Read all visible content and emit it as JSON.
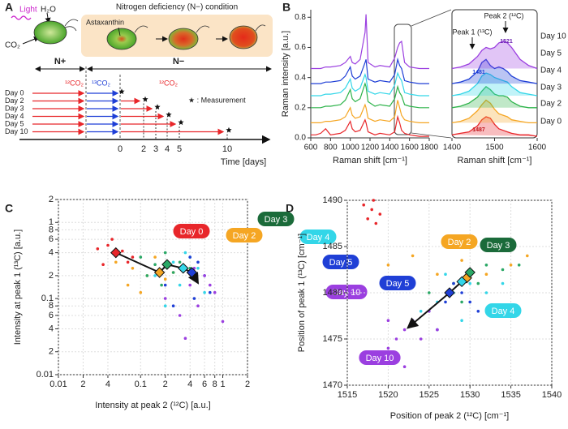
{
  "panels": [
    "A",
    "B",
    "C",
    "D"
  ],
  "diagram": {
    "light": "Light",
    "h2o": "H₂O",
    "co2": "CO₂",
    "condition": "Nitrogen deficiency (N−) condition",
    "astaxanthin": "Astaxanthin",
    "n_plus": "N+",
    "n_minus": "N−",
    "co2_12a": "¹²CO₂",
    "co2_13": "¹³CO₂",
    "co2_12b": "¹²CO₂",
    "measurement": "★ : Measurement",
    "rows": [
      "Day 0",
      "Day 2",
      "Day 3",
      "Day 4",
      "Day 5",
      "Day 10"
    ],
    "time_ticks": [
      0,
      2,
      3,
      4,
      5,
      10
    ],
    "time_label": "Time [days]"
  },
  "chart_data": [
    {
      "type": "line",
      "xlabel": "Raman shift [cm⁻¹]",
      "ylabel": "Raman intensity [a.u.]",
      "x": [
        600,
        650,
        700,
        750,
        800,
        900,
        950,
        1000,
        1020,
        1050,
        1100,
        1150,
        1160,
        1180,
        1250,
        1300,
        1400,
        1450,
        1480,
        1500,
        1520,
        1550,
        1600,
        1700,
        1800
      ],
      "series": [
        {
          "color": "#e8262a",
          "values": [
            0.02,
            0.02,
            0.03,
            0.06,
            0.02,
            0.03,
            0.05,
            0.11,
            0.06,
            0.04,
            0.05,
            0.12,
            0.1,
            0.04,
            0.02,
            0.03,
            0.02,
            0.04,
            0.14,
            0.1,
            0.05,
            0.03,
            0.02,
            0.01,
            0.01
          ]
        },
        {
          "color": "#f5a623",
          "values": [
            0.1,
            0.1,
            0.1,
            0.11,
            0.11,
            0.12,
            0.14,
            0.2,
            0.15,
            0.13,
            0.14,
            0.22,
            0.2,
            0.13,
            0.11,
            0.12,
            0.11,
            0.14,
            0.25,
            0.2,
            0.15,
            0.12,
            0.11,
            0.1,
            0.1
          ]
        },
        {
          "color": "#2db34a",
          "values": [
            0.2,
            0.2,
            0.2,
            0.21,
            0.21,
            0.22,
            0.25,
            0.32,
            0.26,
            0.24,
            0.26,
            0.36,
            0.34,
            0.24,
            0.21,
            0.22,
            0.21,
            0.26,
            0.34,
            0.3,
            0.28,
            0.22,
            0.21,
            0.2,
            0.2
          ]
        },
        {
          "color": "#33d6e8",
          "values": [
            0.28,
            0.28,
            0.28,
            0.29,
            0.29,
            0.3,
            0.33,
            0.39,
            0.33,
            0.31,
            0.33,
            0.42,
            0.4,
            0.31,
            0.29,
            0.3,
            0.29,
            0.35,
            0.43,
            0.4,
            0.38,
            0.3,
            0.29,
            0.28,
            0.28
          ]
        },
        {
          "color": "#1f3fd6",
          "values": [
            0.36,
            0.36,
            0.36,
            0.37,
            0.37,
            0.38,
            0.41,
            0.47,
            0.41,
            0.39,
            0.41,
            0.5,
            0.52,
            0.39,
            0.37,
            0.38,
            0.37,
            0.42,
            0.52,
            0.48,
            0.46,
            0.38,
            0.37,
            0.36,
            0.36
          ]
        },
        {
          "color": "#9b3fe0",
          "values": [
            0.46,
            0.46,
            0.46,
            0.47,
            0.47,
            0.48,
            0.5,
            0.54,
            0.5,
            0.49,
            0.52,
            0.7,
            0.82,
            0.5,
            0.47,
            0.48,
            0.47,
            0.53,
            0.6,
            0.63,
            0.64,
            0.5,
            0.47,
            0.46,
            0.46
          ]
        }
      ],
      "xlim": [
        600,
        1800
      ],
      "xticks": [
        600,
        800,
        1000,
        1200,
        1400,
        1600,
        1800
      ],
      "ylim": [
        0,
        0.85
      ],
      "yticks": [
        {
          "value": 0,
          "label": "0.0"
        },
        0.2,
        0.4,
        0.6,
        0.8
      ]
    },
    {
      "type": "area",
      "xlabel": "Raman shift [cm⁻¹]",
      "x": [
        1400,
        1420,
        1440,
        1460,
        1470,
        1480,
        1490,
        1500,
        1510,
        1520,
        1530,
        1540,
        1560,
        1580,
        1600
      ],
      "series": [
        {
          "name": "Day 10",
          "color": "#9b3fe0",
          "values": [
            0.46,
            0.47,
            0.49,
            0.54,
            0.58,
            0.6,
            0.59,
            0.6,
            0.63,
            0.64,
            0.63,
            0.6,
            0.52,
            0.48,
            0.46
          ]
        },
        {
          "name": "Day 5",
          "color": "#1f3fd6",
          "values": [
            0.36,
            0.37,
            0.39,
            0.44,
            0.5,
            0.52,
            0.48,
            0.46,
            0.47,
            0.46,
            0.44,
            0.41,
            0.38,
            0.37,
            0.36
          ]
        },
        {
          "name": "Day 4",
          "color": "#33d6e8",
          "values": [
            0.28,
            0.29,
            0.31,
            0.36,
            0.41,
            0.43,
            0.42,
            0.4,
            0.39,
            0.38,
            0.37,
            0.34,
            0.3,
            0.29,
            0.28
          ]
        },
        {
          "name": "Day 3",
          "color": "#2db34a",
          "values": [
            0.2,
            0.21,
            0.23,
            0.27,
            0.31,
            0.34,
            0.32,
            0.29,
            0.28,
            0.28,
            0.27,
            0.24,
            0.21,
            0.2,
            0.2
          ]
        },
        {
          "name": "Day 2",
          "color": "#f5a623",
          "values": [
            0.1,
            0.11,
            0.13,
            0.18,
            0.22,
            0.25,
            0.23,
            0.19,
            0.16,
            0.15,
            0.14,
            0.12,
            0.11,
            0.1,
            0.1
          ]
        },
        {
          "name": "Day 0",
          "color": "#e8262a",
          "values": [
            0.02,
            0.03,
            0.04,
            0.08,
            0.12,
            0.14,
            0.13,
            0.09,
            0.06,
            0.05,
            0.04,
            0.03,
            0.02,
            0.02,
            0.01
          ]
        }
      ],
      "xlim": [
        1400,
        1600
      ],
      "xticks": [
        1400,
        1500,
        1600
      ],
      "ylim": [
        0,
        0.85
      ],
      "annotations": [
        "Peak 2 (¹²C)",
        "Peak 1 (¹³C)",
        "1521",
        "1481",
        "1487"
      ]
    },
    {
      "type": "scatter",
      "xlabel": "Intensity at peak 2 (¹²C) [a.u.]",
      "ylabel": "Intensity at peak 1 (¹³C) [a.u.]",
      "xscale": "log",
      "yscale": "log",
      "grid": true,
      "xlim": [
        0.01,
        2
      ],
      "ylim": [
        0.01,
        2
      ],
      "xticks": [
        0.01,
        {
          "value": 0.02,
          "label": "2"
        },
        {
          "value": 0.04,
          "label": "4"
        },
        0.1,
        {
          "value": 0.2,
          "label": "2"
        },
        {
          "value": 0.4,
          "label": "4"
        },
        {
          "value": 0.6,
          "label": "6"
        },
        {
          "value": 0.8,
          "label": "8"
        },
        1,
        2
      ],
      "yticks": [
        0.01,
        {
          "value": 0.02,
          "label": "2"
        },
        {
          "value": 0.04,
          "label": "4"
        },
        {
          "value": 0.06,
          "label": "6"
        },
        {
          "value": 0.08,
          "label": "8"
        },
        0.1,
        {
          "value": 0.2,
          "label": "2"
        },
        {
          "value": 0.4,
          "label": "4"
        },
        {
          "value": 0.6,
          "label": "6"
        },
        {
          "value": 0.8,
          "label": "8"
        },
        1,
        2
      ],
      "series": [
        {
          "name": "Day 0",
          "color": "#e8262a",
          "label_color": "#e8262a",
          "x": [
            0.03,
            0.04,
            0.05,
            0.06,
            0.07,
            0.045,
            0.08,
            0.035
          ],
          "values": [
            0.45,
            0.5,
            0.38,
            0.42,
            0.3,
            0.6,
            0.35,
            0.28
          ],
          "mean": {
            "x": 0.05,
            "y": 0.4
          }
        },
        {
          "name": "Day 2",
          "color": "#f5a623",
          "label_color": "#f5a623",
          "x": [
            0.05,
            0.08,
            0.12,
            0.15,
            0.2,
            0.1,
            0.25,
            0.07
          ],
          "values": [
            0.3,
            0.25,
            0.2,
            0.35,
            0.18,
            0.12,
            0.22,
            0.15
          ],
          "mean": {
            "x": 0.17,
            "y": 0.22
          }
        },
        {
          "name": "Day 3",
          "color": "#2aa866",
          "label_color": "#1b6b3a",
          "x": [
            0.1,
            0.15,
            0.2,
            0.25,
            0.3,
            0.18,
            0.4,
            0.12
          ],
          "values": [
            0.35,
            0.28,
            0.4,
            0.22,
            0.3,
            0.15,
            0.25,
            0.2
          ],
          "mean": {
            "x": 0.21,
            "y": 0.28
          }
        },
        {
          "name": "Day 4",
          "color": "#33d6e8",
          "label_color": "#33d6e8",
          "x": [
            0.15,
            0.25,
            0.3,
            0.4,
            0.5,
            0.6,
            0.2,
            0.35
          ],
          "values": [
            0.2,
            0.3,
            0.15,
            0.35,
            0.25,
            0.12,
            0.08,
            0.4
          ],
          "mean": {
            "x": 0.33,
            "y": 0.25
          }
        },
        {
          "name": "Day 5",
          "color": "#1f3fd6",
          "label_color": "#1f3fd6",
          "x": [
            0.2,
            0.3,
            0.45,
            0.5,
            0.6,
            0.7,
            0.25,
            0.4
          ],
          "values": [
            0.15,
            0.25,
            0.1,
            0.3,
            0.2,
            0.12,
            0.08,
            0.35
          ],
          "mean": {
            "x": 0.42,
            "y": 0.22
          }
        },
        {
          "name": "Day 10",
          "color": "#9b3fe0",
          "label_color": "#9b3fe0",
          "x": [
            0.2,
            0.3,
            0.4,
            0.5,
            0.6,
            0.8,
            1.0,
            0.35,
            0.45,
            0.7
          ],
          "values": [
            0.1,
            0.06,
            0.15,
            0.08,
            0.2,
            0.12,
            0.05,
            0.03,
            0.25,
            0.15
          ],
          "mean": {
            "x": 0.5,
            "y": 0.16
          }
        }
      ]
    },
    {
      "type": "scatter",
      "xlabel": "Position of peak 2 (¹²C)  [cm⁻¹]",
      "ylabel": "Position of peak 1 (¹³C) [cm⁻¹]",
      "grid": true,
      "xlim": [
        1515,
        1540
      ],
      "ylim": [
        1470,
        1490
      ],
      "xticks": [
        1515,
        1520,
        1525,
        1530,
        1535,
        1540
      ],
      "yticks": [
        1470,
        1475,
        1480,
        1485,
        1490
      ],
      "series": [
        {
          "color": "#e8262a",
          "x": [
            1517.5,
            1518,
            1518.5,
            1517,
            1519,
            1518.2
          ],
          "values": [
            1488,
            1489,
            1487.5,
            1489.5,
            1488.5,
            1490
          ]
        },
        {
          "name": "Day 2",
          "color": "#f5a623",
          "label_color": "#f5a623",
          "x": [
            1520,
            1523,
            1526,
            1529,
            1532,
            1535,
            1537,
            1528
          ],
          "values": [
            1483,
            1484,
            1482,
            1483.5,
            1482,
            1483,
            1484,
            1481
          ],
          "mean": {
            "x": 1529.6,
            "y": 1481.6
          }
        },
        {
          "name": "Day 3",
          "color": "#2aa866",
          "label_color": "#1b6b3a",
          "x": [
            1525,
            1528,
            1530,
            1532,
            1534,
            1531,
            1529,
            1536
          ],
          "values": [
            1480,
            1481,
            1482,
            1483,
            1482.5,
            1481,
            1479,
            1483
          ],
          "mean": {
            "x": 1530,
            "y": 1482.2
          }
        },
        {
          "name": "Day 4",
          "color": "#33d6e8",
          "label_color": "#33d6e8",
          "x": [
            1524,
            1526,
            1528,
            1530,
            1532,
            1534,
            1529,
            1527
          ],
          "values": [
            1478,
            1479,
            1480,
            1481,
            1480,
            1481,
            1477,
            1482
          ],
          "mean": {
            "x": 1529,
            "y": 1481.2
          }
        },
        {
          "name": "Day 5",
          "color": "#1f3fd6",
          "label_color": "#1f3fd6",
          "x": [
            1523,
            1525,
            1527,
            1529,
            1531,
            1528,
            1526,
            1530
          ],
          "values": [
            1477,
            1478,
            1479,
            1480,
            1478,
            1481,
            1476,
            1479
          ],
          "mean": {
            "x": 1527.5,
            "y": 1480
          }
        },
        {
          "name": "Day 10",
          "color": "#9b3fe0",
          "label_color": "#9b3fe0",
          "x": [
            1520,
            1521,
            1522,
            1523,
            1524,
            1525,
            1522,
            1520,
            1526,
            1519
          ],
          "values": [
            1474,
            1475,
            1476,
            1477,
            1475,
            1478,
            1472,
            1477,
            1476,
            1473
          ],
          "mean": {
            "x": 1522.4,
            "y": 1476.2
          }
        }
      ]
    }
  ]
}
